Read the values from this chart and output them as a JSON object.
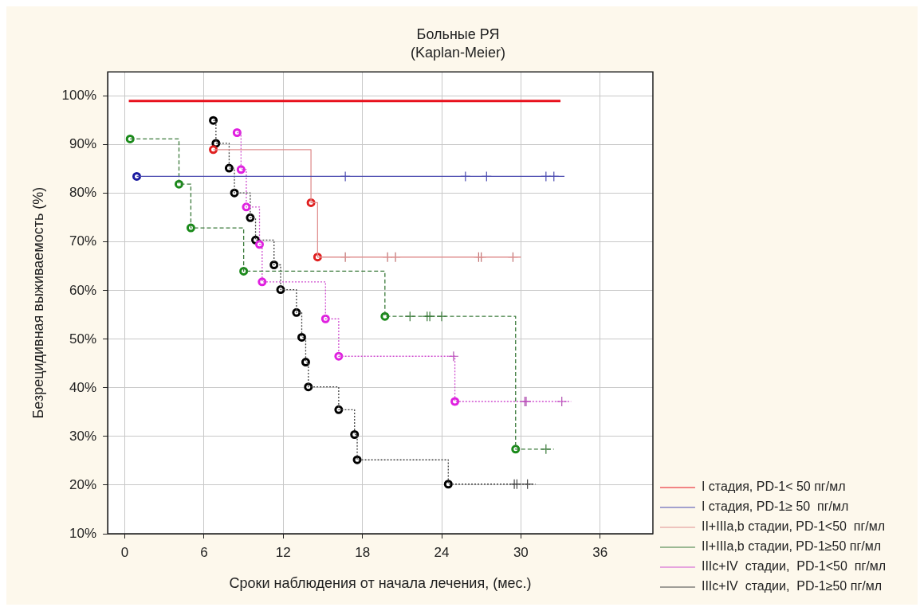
{
  "chart_data": {
    "type": "step",
    "title": "Больные РЯ",
    "subtitle": "(Kaplan-Meier)",
    "xlabel": "Сроки наблюдения от начала лечения, (мес.)",
    "ylabel": "Безрецидивная выживаемость (%)",
    "xlim": [
      -1.3,
      40
    ],
    "xticks": [
      0,
      6,
      12,
      18,
      24,
      30,
      36
    ],
    "ylim": [
      10,
      105
    ],
    "yticks": [
      {
        "value": 10,
        "label": "10%"
      },
      {
        "value": 20,
        "label": "20%"
      },
      {
        "value": 30,
        "label": "30%"
      },
      {
        "value": 40,
        "label": "40%"
      },
      {
        "value": 50,
        "label": "50%"
      },
      {
        "value": 60,
        "label": "60%"
      },
      {
        "value": 70,
        "label": "70%"
      },
      {
        "value": 80,
        "label": "80%"
      },
      {
        "value": 90,
        "label": "90%"
      },
      {
        "value": 100,
        "label": "100%"
      }
    ],
    "grid": true,
    "legend": "bottom right",
    "series": [
      {
        "name": "I стадия, PD-1< 50 пг/мл",
        "type": "line",
        "color": "#e8101c",
        "marker": "none",
        "line_style": "solid",
        "x": [
          0.3,
          33
        ],
        "values": [
          99,
          99
        ]
      },
      {
        "name": "I стадия, PD-1≥ 50  пг/мл",
        "type": "step",
        "color": "#4a4ab0",
        "marker": "none",
        "line_style": "solid",
        "x": [
          0.9,
          33.3
        ],
        "values": [
          83.5,
          83.5
        ]
      },
      {
        "type": "scatter",
        "color": "#1a1aa0",
        "marker": "circle",
        "x": [
          0.9
        ],
        "values": [
          83.5
        ]
      },
      {
        "type": "scatter",
        "color": "#4a4ab0",
        "marker": "cross",
        "x": [
          16.7,
          25.8,
          27.4,
          31.9,
          32.5
        ],
        "values": [
          83.5,
          83.5,
          83.5,
          83.5,
          83.5
        ]
      },
      {
        "name": "II+IIIa,b стадии, PD-1<50  пг/мл",
        "type": "step",
        "color": "#e09090",
        "marker": "none",
        "line_style": "solid",
        "x": [
          6.7,
          14.1,
          14.6,
          30
        ],
        "values": [
          89,
          78.1,
          66.9,
          66.9
        ]
      },
      {
        "type": "scatter",
        "color": "#e02020",
        "marker": "circle",
        "x": [
          6.7,
          14.1,
          14.6
        ],
        "values": [
          89,
          78.1,
          66.9
        ]
      },
      {
        "type": "scatter",
        "color": "#c07070",
        "marker": "cross",
        "x": [
          16.7,
          19.9,
          20.5,
          26.8,
          27,
          29.4
        ],
        "values": [
          66.9,
          66.9,
          66.9,
          66.9,
          66.9,
          66.9
        ]
      },
      {
        "name": "II+IIIa,b стадии, PD-1≥50 пг/мл",
        "type": "step",
        "color": "#3a7a3a",
        "marker": "none",
        "line_style": "dashed",
        "x": [
          0.4,
          4.1,
          5,
          9,
          19.7,
          29.6,
          32.5
        ],
        "values": [
          91.2,
          81.9,
          72.9,
          64,
          54.7,
          27.4,
          27.4
        ]
      },
      {
        "type": "scatter",
        "color": "#1a8a1a",
        "marker": "circle",
        "x": [
          0.4,
          4.1,
          5,
          9,
          19.7,
          29.6
        ],
        "values": [
          91.2,
          81.9,
          72.9,
          64,
          54.7,
          27.4
        ]
      },
      {
        "type": "scatter",
        "color": "#3a7a3a",
        "marker": "cross",
        "x": [
          21.6,
          22.9,
          23.1,
          24,
          31.9
        ],
        "values": [
          54.7,
          54.7,
          54.7,
          54.7,
          27.4
        ]
      },
      {
        "name": "IIIc+IV  стадии,  PD-1<50  пг/мл",
        "type": "step",
        "color": "#d050d0",
        "marker": "none",
        "line_style": "dotted",
        "x": [
          8.5,
          8.8,
          9.2,
          10.2,
          10.4,
          15.2,
          16.2,
          25,
          33.8
        ],
        "values": [
          92.5,
          84.9,
          77.2,
          69.5,
          61.8,
          54.2,
          46.5,
          37.2,
          37.2
        ]
      },
      {
        "type": "scatter",
        "color": "#e020e0",
        "marker": "circle",
        "x": [
          8.5,
          8.8,
          9.2,
          10.2,
          10.4,
          15.2,
          16.2,
          25
        ],
        "values": [
          92.5,
          84.9,
          77.2,
          69.5,
          61.8,
          54.2,
          46.5,
          37.2
        ]
      },
      {
        "type": "scatter",
        "color": "#b050b0",
        "marker": "cross",
        "x": [
          24.9,
          30.3,
          30.4,
          33.1
        ],
        "values": [
          46.5,
          37.2,
          37.2,
          37.2
        ]
      },
      {
        "name": "IIIc+IV  стадии,  PD-1≥50 пг/мл",
        "type": "step",
        "color": "#444444",
        "marker": "none",
        "line_style": "dotted",
        "x": [
          6.7,
          6.9,
          7.9,
          8.3,
          9.5,
          9.9,
          11.3,
          11.8,
          13,
          13.4,
          13.7,
          13.9,
          16.2,
          17.4,
          17.6,
          24.5,
          31.1
        ],
        "values": [
          95,
          90.3,
          85.2,
          80.1,
          75,
          70.4,
          65.3,
          60.2,
          55.5,
          50.4,
          45.3,
          40.2,
          35.5,
          30.4,
          25.2,
          20.2,
          20.2
        ]
      },
      {
        "type": "scatter",
        "color": "#000000",
        "marker": "circle",
        "x": [
          6.7,
          6.9,
          7.9,
          8.3,
          9.5,
          9.9,
          11.3,
          11.8,
          13,
          13.4,
          13.7,
          13.9,
          16.2,
          17.4,
          17.6,
          24.5
        ],
        "values": [
          95,
          90.3,
          85.2,
          80.1,
          75,
          70.4,
          65.3,
          60.2,
          55.5,
          50.4,
          45.3,
          40.2,
          35.5,
          30.4,
          25.2,
          20.2
        ]
      },
      {
        "type": "scatter",
        "color": "#444444",
        "marker": "cross",
        "x": [
          29.5,
          29.7,
          30.5
        ],
        "values": [
          20.2,
          20.2,
          20.2
        ]
      }
    ]
  }
}
